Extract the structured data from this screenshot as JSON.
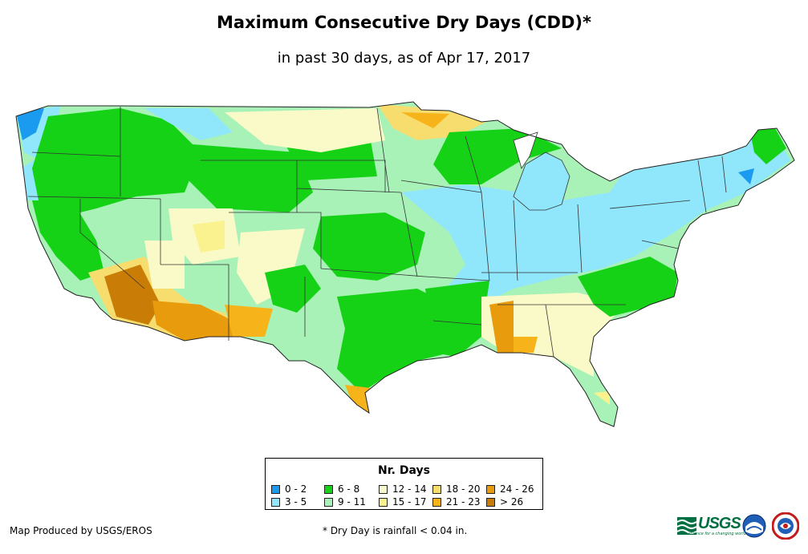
{
  "title": "Maximum Consecutive Dry Days (CDD)*",
  "subtitle": "in past 30 days, as of Apr 17, 2017",
  "legend": {
    "title": "Nr. Days",
    "items": [
      {
        "label": "0 - 2",
        "color": "#1a9bf0"
      },
      {
        "label": "3 - 5",
        "color": "#90e6fb"
      },
      {
        "label": "6 - 8",
        "color": "#16d216"
      },
      {
        "label": "9 - 11",
        "color": "#a8f2b8"
      },
      {
        "label": "12 - 14",
        "color": "#fafac8"
      },
      {
        "label": "15 - 17",
        "color": "#f9f28e"
      },
      {
        "label": "18 - 20",
        "color": "#f7dc6e"
      },
      {
        "label": "21 - 23",
        "color": "#f6b41a"
      },
      {
        "label": "24 - 26",
        "color": "#e89b0c"
      },
      {
        "label": "> 26",
        "color": "#c97d06"
      }
    ]
  },
  "credit": "Map Produced by USGS/EROS",
  "footnote": "* Dry Day is rainfall < 0.04 in.",
  "logos": {
    "usgs": "USGS",
    "usgs_tagline": "science for a changing world"
  }
}
